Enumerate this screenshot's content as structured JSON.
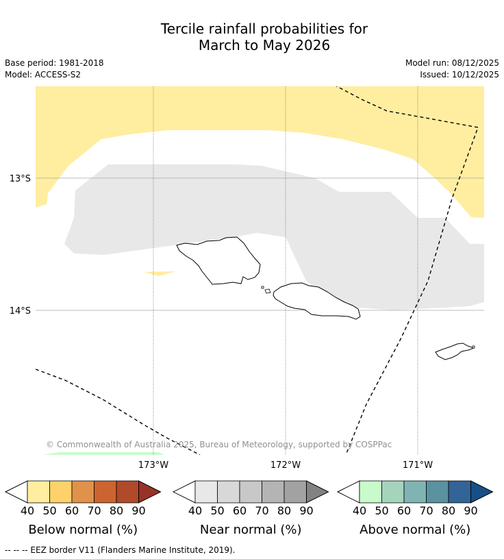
{
  "title": {
    "line1": "Tercile rainfall probabilities for",
    "line2": "March to May 2026"
  },
  "meta": {
    "base_period": "Base period: 1981-2018",
    "model": "Model: ACCESS-S2",
    "model_run": "Model run: 08/12/2025",
    "issued": "Issued: 10/12/2025"
  },
  "map": {
    "lat_labels": [
      "13°S",
      "14°S"
    ],
    "lon_labels": [
      "173°W",
      "172°W",
      "171°W"
    ],
    "copyright": "© Commonwealth of Australia 2025, Bureau of Meteorology, supported by COSPPac"
  },
  "legend": {
    "tick_labels": [
      "40",
      "50",
      "60",
      "70",
      "80",
      "90"
    ],
    "below": {
      "title": "Below normal (%)",
      "colors": [
        "#ffeda0",
        "#fed16a",
        "#e0924a",
        "#cc6430",
        "#b04a2a",
        "#983226"
      ]
    },
    "near": {
      "title": "Near normal (%)",
      "colors": [
        "#e8e8e8",
        "#d8d8d8",
        "#c8c8c8",
        "#b4b4b4",
        "#a2a2a2",
        "#828282"
      ]
    },
    "above": {
      "title": "Above normal (%)",
      "colors": [
        "#c7fcca",
        "#a4d4bc",
        "#80b4b2",
        "#5b92a0",
        "#326497",
        "#164f88"
      ]
    }
  },
  "footnote": "--  --  -- EEZ border V11 (Flanders Marine Institute, 2019)."
}
